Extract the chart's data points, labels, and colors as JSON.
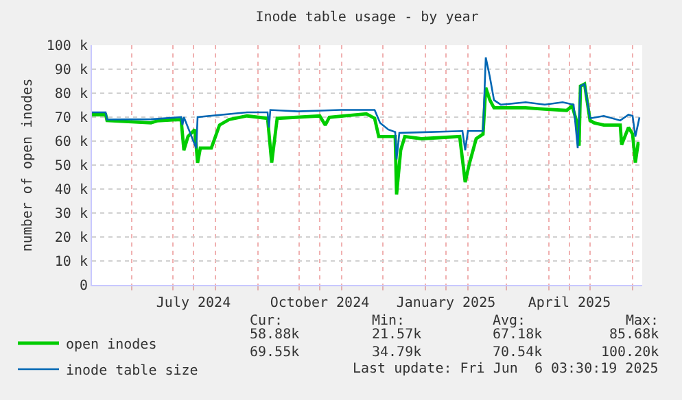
{
  "chart_data": {
    "type": "line",
    "title": "Inode table usage - by year",
    "ylabel": "number of open inodes",
    "xlim": [
      "2024-05-03",
      "2025-06-08"
    ],
    "ylim": [
      0,
      100000
    ],
    "xticks": [
      {
        "value": "2024-06-01",
        "label": null
      },
      {
        "value": "2024-07-01",
        "label": null
      },
      {
        "value": "2024-07-16",
        "label": "July 2024"
      },
      {
        "value": "2024-08-01",
        "label": null
      },
      {
        "value": "2024-09-01",
        "label": null
      },
      {
        "value": "2024-10-01",
        "label": null
      },
      {
        "value": "2024-10-16",
        "label": "October 2024"
      },
      {
        "value": "2024-11-01",
        "label": null
      },
      {
        "value": "2024-12-01",
        "label": null
      },
      {
        "value": "2025-01-01",
        "label": null
      },
      {
        "value": "2025-01-16",
        "label": "January 2025"
      },
      {
        "value": "2025-02-01",
        "label": null
      },
      {
        "value": "2025-03-01",
        "label": null
      },
      {
        "value": "2025-04-01",
        "label": null
      },
      {
        "value": "2025-04-16",
        "label": "April 2025"
      },
      {
        "value": "2025-05-01",
        "label": null
      },
      {
        "value": "2025-06-01",
        "label": null
      }
    ],
    "yticks": [
      0,
      {
        "value": 10000,
        "label": "10 k"
      },
      {
        "value": 20000,
        "label": "20 k"
      },
      {
        "value": 30000,
        "label": "30 k"
      },
      {
        "value": 40000,
        "label": "40 k"
      },
      {
        "value": 50000,
        "label": "50 k"
      },
      {
        "value": 60000,
        "label": "60 k"
      },
      {
        "value": 70000,
        "label": "70 k"
      },
      {
        "value": 80000,
        "label": "80 k"
      },
      {
        "value": 90000,
        "label": "90 k"
      },
      {
        "value": 100000,
        "label": "100 k"
      }
    ],
    "grid": true,
    "legend": "bottom",
    "marker": "none",
    "line_style": "solid",
    "series": [
      {
        "name": "open inodes",
        "color": "#00cc00",
        "x": [
          "2024-05-03",
          "2024-05-13",
          "2024-05-14",
          "2024-06-15",
          "2024-06-20",
          "2024-07-07",
          "2024-07-09",
          "2024-07-12",
          "2024-07-17",
          "2024-07-19",
          "2024-07-21",
          "2024-07-29",
          "2024-08-01",
          "2024-08-04",
          "2024-08-11",
          "2024-08-24",
          "2024-09-08",
          "2024-09-11",
          "2024-09-15",
          "2024-10-16",
          "2024-10-20",
          "2024-10-23",
          "2024-11-19",
          "2024-11-25",
          "2024-11-28",
          "2024-12-10",
          "2024-12-11",
          "2024-12-14",
          "2024-12-17",
          "2024-12-29",
          "2025-01-26",
          "2025-01-30",
          "2025-02-02",
          "2025-02-07",
          "2025-02-12",
          "2025-02-14",
          "2025-02-17",
          "2025-02-20",
          "2025-03-15",
          "2025-03-29",
          "2025-04-14",
          "2025-04-18",
          "2025-04-21",
          "2025-04-23",
          "2025-04-24",
          "2025-04-27",
          "2025-05-01",
          "2025-05-04",
          "2025-05-11",
          "2025-05-23",
          "2025-05-24",
          "2025-05-29",
          "2025-06-01",
          "2025-06-03",
          "2025-06-05",
          "2025-06-06"
        ],
        "values": [
          71000,
          71000,
          68600,
          67600,
          68500,
          69000,
          56200,
          61900,
          64800,
          50900,
          57100,
          57100,
          61900,
          66700,
          69000,
          70500,
          69500,
          51000,
          69500,
          70500,
          66700,
          69900,
          71400,
          69500,
          61900,
          61900,
          37700,
          56200,
          61900,
          61000,
          61900,
          42900,
          50500,
          61000,
          62900,
          82300,
          77100,
          73900,
          73900,
          73300,
          72800,
          74700,
          68600,
          58100,
          82900,
          83800,
          68600,
          67600,
          66700,
          66700,
          58500,
          65700,
          62900,
          51000,
          59000,
          59000
        ]
      },
      {
        "name": "inode table size",
        "color": "#0066b3",
        "x": [
          "2024-05-03",
          "2024-05-13",
          "2024-05-14",
          "2024-06-15",
          "2024-07-07",
          "2024-07-08",
          "2024-07-09",
          "2024-07-18",
          "2024-07-19",
          "2024-08-24",
          "2024-09-08",
          "2024-09-09",
          "2024-09-10",
          "2024-09-30",
          "2024-10-31",
          "2024-11-25",
          "2024-11-29",
          "2024-12-05",
          "2024-12-10",
          "2024-12-11",
          "2024-12-13",
          "2025-01-28",
          "2025-01-30",
          "2025-02-01",
          "2025-02-12",
          "2025-02-14",
          "2025-02-17",
          "2025-02-20",
          "2025-02-25",
          "2025-03-15",
          "2025-03-29",
          "2025-04-11",
          "2025-04-19",
          "2025-04-22",
          "2025-04-24",
          "2025-04-27",
          "2025-05-01",
          "2025-05-11",
          "2025-05-23",
          "2025-05-29",
          "2025-06-01",
          "2025-06-03",
          "2025-06-06"
        ],
        "values": [
          72000,
          72000,
          69000,
          69100,
          70000,
          66700,
          70000,
          57000,
          70000,
          72000,
          72000,
          65700,
          73000,
          72400,
          73000,
          73000,
          67600,
          64800,
          63800,
          52400,
          63400,
          64200,
          56200,
          64200,
          64200,
          94900,
          86700,
          77100,
          75200,
          76200,
          75200,
          76200,
          75200,
          57100,
          82900,
          83800,
          69500,
          70500,
          68600,
          71000,
          70500,
          61900,
          69900
        ]
      }
    ],
    "annotations": [
      "Cur:",
      "Min:",
      "Avg:",
      "Max:",
      "58.88k",
      "21.57k",
      "67.18k",
      "85.68k",
      "69.55k",
      "34.79k",
      "70.54k",
      "100.20k",
      "Last update: Fri Jun  6 03:30:19 2025"
    ]
  }
}
